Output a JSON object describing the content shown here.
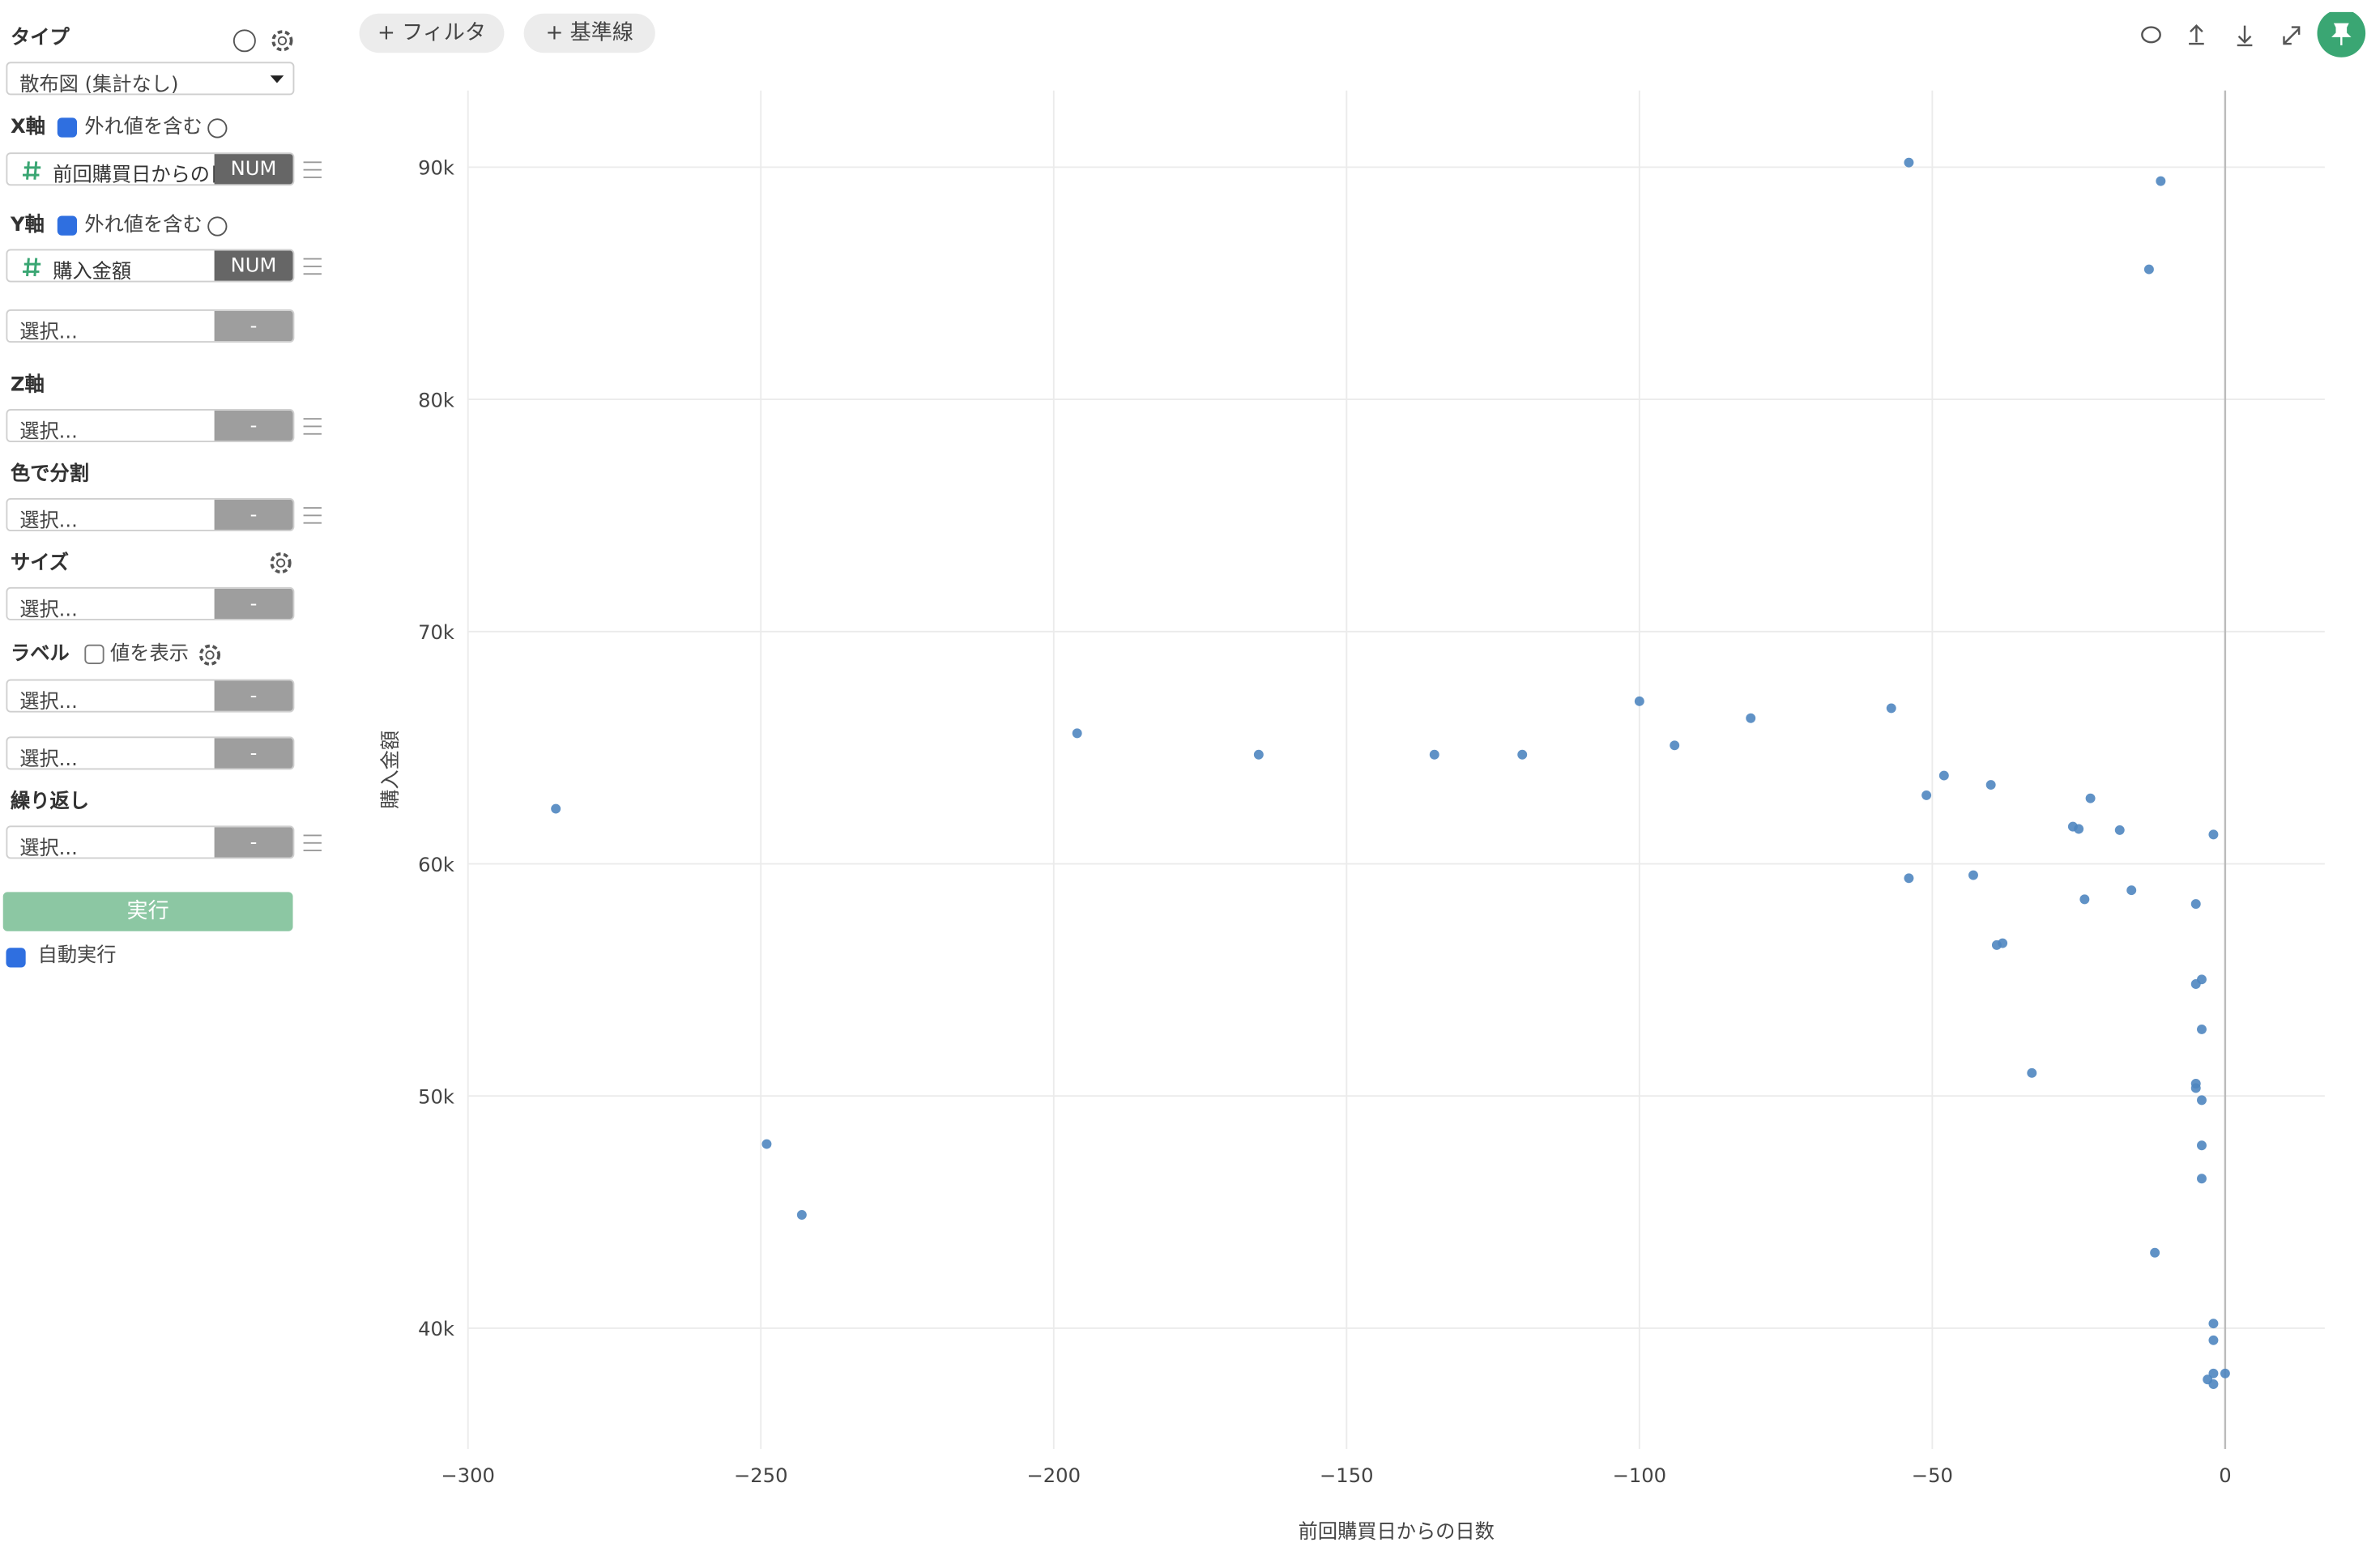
{
  "toolbar": {
    "filter": "+ フィルタ",
    "reference_line": "+ 基準線"
  },
  "sidebar": {
    "type": {
      "label": "タイプ",
      "value": "散布図 (集計なし)"
    },
    "x_axis": {
      "label": "X軸",
      "outliers": "外れ値を含む",
      "field": "前回購買日からの日数",
      "kind": "NUM"
    },
    "y_axis": {
      "label": "Y軸",
      "outliers": "外れ値を含む",
      "field": "購入金額",
      "kind": "NUM"
    },
    "y_extra": {
      "placeholder": "選択...",
      "kind": "-"
    },
    "z_axis": {
      "label": "Z軸",
      "placeholder": "選択...",
      "kind": "-"
    },
    "color_split": {
      "label": "色で分割",
      "placeholder": "選択...",
      "kind": "-"
    },
    "size": {
      "label": "サイズ",
      "placeholder": "選択...",
      "kind": "-"
    },
    "label": {
      "label": "ラベル",
      "show_values": "値を表示",
      "fields": [
        {
          "placeholder": "選択...",
          "kind": "-"
        },
        {
          "placeholder": "選択...",
          "kind": "-"
        }
      ]
    },
    "repeat": {
      "label": "繰り返し",
      "placeholder": "選択...",
      "kind": "-"
    },
    "run_button": "実行",
    "auto_run": "自動実行"
  },
  "chart_data": {
    "type": "scatter",
    "x_label": "前回購買日からの日数",
    "y_label": "購入金額",
    "color": "#4f86c0",
    "grid": true,
    "zero_line": true,
    "xlim": [
      -300,
      17
    ],
    "ylim": [
      34800,
      93300
    ],
    "xticks": [
      {
        "value": -300,
        "label": "−300"
      },
      {
        "value": -250,
        "label": "−250"
      },
      {
        "value": -200,
        "label": "−200"
      },
      {
        "value": -150,
        "label": "−150"
      },
      {
        "value": -100,
        "label": "−100"
      },
      {
        "value": -50,
        "label": "−50"
      },
      0
    ],
    "yticks": [
      {
        "value": 40000,
        "label": "40k"
      },
      {
        "value": 50000,
        "label": "50k"
      },
      {
        "value": 60000,
        "label": "60k"
      },
      {
        "value": 70000,
        "label": "70k"
      },
      {
        "value": 80000,
        "label": "80k"
      },
      {
        "value": 90000,
        "label": "90k"
      }
    ],
    "x": [
      -54,
      -11,
      -13,
      -100,
      -57,
      -81,
      -196,
      -165,
      -135,
      -120,
      -94,
      -48,
      -51,
      -40,
      -23,
      -285,
      -26,
      -25,
      -18,
      -2,
      -54,
      -43,
      -16,
      -24,
      -5,
      -39,
      -38,
      -4,
      -5,
      -4,
      -33,
      -5,
      -5,
      -4,
      -249,
      -4,
      -4,
      -243,
      -12,
      -2,
      -2,
      -2,
      0,
      -3,
      -2
    ],
    "values": [
      90200,
      89400,
      85600,
      67000,
      66700,
      66270,
      65620,
      64700,
      64700,
      64700,
      65100,
      63800,
      62950,
      63400,
      62820,
      62370,
      61600,
      61500,
      61450,
      61260,
      59380,
      59510,
      58860,
      58470,
      58270,
      56500,
      56580,
      55020,
      54820,
      52870,
      50990,
      50530,
      50340,
      49820,
      47930,
      47870,
      46440,
      44880,
      43250,
      40200,
      39480,
      38050,
      38050,
      37790,
      37590
    ]
  }
}
